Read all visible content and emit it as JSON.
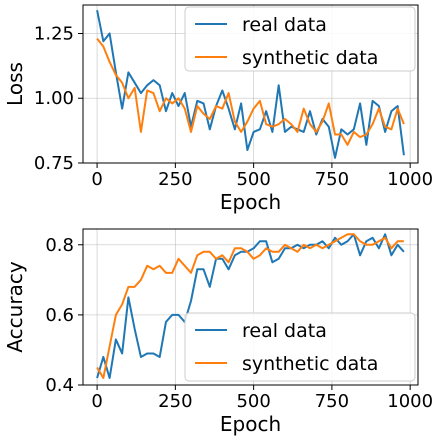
{
  "chart_data": [
    {
      "type": "line",
      "xlabel": "Epoch",
      "ylabel": "Loss",
      "xlim": [
        -45,
        1025
      ],
      "ylim": [
        0.75,
        1.36
      ],
      "xticks": [
        0,
        250,
        500,
        750,
        1000
      ],
      "xtick_labels": [
        "0",
        "250",
        "500",
        "750",
        "1000"
      ],
      "yticks": [
        0.75,
        1.0,
        1.25
      ],
      "ytick_labels": [
        "0.75",
        "1.00",
        "1.25"
      ],
      "grid": true,
      "legend": "top-right",
      "series": [
        {
          "name": "real data",
          "color": "#1f77b4",
          "x": [
            0,
            20,
            40,
            60,
            80,
            100,
            120,
            140,
            160,
            180,
            200,
            220,
            240,
            260,
            280,
            300,
            320,
            340,
            360,
            380,
            400,
            420,
            440,
            460,
            480,
            500,
            520,
            540,
            560,
            580,
            600,
            620,
            640,
            660,
            680,
            700,
            720,
            740,
            760,
            780,
            800,
            820,
            840,
            860,
            880,
            900,
            920,
            940,
            960,
            980
          ],
          "y": [
            1.34,
            1.22,
            1.25,
            1.1,
            0.96,
            1.1,
            1.06,
            1.02,
            1.05,
            1.07,
            1.05,
            0.95,
            1.02,
            0.97,
            1.02,
            0.89,
            0.99,
            0.98,
            0.88,
            0.97,
            1.03,
            0.96,
            0.88,
            0.98,
            0.8,
            0.87,
            0.88,
            0.95,
            0.87,
            1.05,
            0.87,
            0.89,
            0.88,
            0.87,
            0.95,
            0.86,
            0.92,
            0.89,
            0.77,
            0.88,
            0.86,
            0.88,
            0.98,
            0.82,
            0.99,
            0.97,
            0.87,
            0.95,
            0.97,
            0.78
          ]
        },
        {
          "name": "synthetic data",
          "color": "#ff7f0e",
          "x": [
            0,
            20,
            40,
            60,
            80,
            100,
            120,
            140,
            160,
            180,
            200,
            220,
            240,
            260,
            280,
            300,
            320,
            340,
            360,
            380,
            400,
            420,
            440,
            460,
            480,
            500,
            520,
            540,
            560,
            580,
            600,
            620,
            640,
            660,
            680,
            700,
            720,
            740,
            760,
            780,
            800,
            820,
            840,
            860,
            880,
            900,
            920,
            940,
            960,
            980
          ],
          "y": [
            1.23,
            1.2,
            1.14,
            1.09,
            1.06,
            1.0,
            1.04,
            0.87,
            1.03,
            1.02,
            0.95,
            1.0,
            0.98,
            1.0,
            0.96,
            0.87,
            0.97,
            0.94,
            0.92,
            0.97,
            0.96,
            1.02,
            0.91,
            0.87,
            0.91,
            0.96,
            0.99,
            0.9,
            0.89,
            0.9,
            0.92,
            0.9,
            0.87,
            0.96,
            0.9,
            0.87,
            0.91,
            0.98,
            0.86,
            0.86,
            0.82,
            0.87,
            0.85,
            0.86,
            0.9,
            0.96,
            0.89,
            0.88,
            0.96,
            0.9
          ]
        }
      ]
    },
    {
      "type": "line",
      "xlabel": "Epoch",
      "ylabel": "Accuracy",
      "xlim": [
        -45,
        1025
      ],
      "ylim": [
        0.4,
        0.845
      ],
      "xticks": [
        0,
        250,
        500,
        750,
        1000
      ],
      "xtick_labels": [
        "0",
        "250",
        "500",
        "750",
        "1000"
      ],
      "yticks": [
        0.4,
        0.6,
        0.8
      ],
      "ytick_labels": [
        "0.4",
        "0.6",
        "0.8"
      ],
      "grid": true,
      "legend": "bottom-right",
      "series": [
        {
          "name": "real data",
          "color": "#1f77b4",
          "x": [
            0,
            20,
            40,
            60,
            80,
            100,
            120,
            140,
            160,
            180,
            200,
            220,
            240,
            260,
            280,
            300,
            320,
            340,
            360,
            380,
            400,
            420,
            440,
            460,
            480,
            500,
            520,
            540,
            560,
            580,
            600,
            620,
            640,
            660,
            680,
            700,
            720,
            740,
            760,
            780,
            800,
            820,
            840,
            860,
            880,
            900,
            920,
            940,
            960,
            980
          ],
          "y": [
            0.42,
            0.48,
            0.42,
            0.53,
            0.49,
            0.65,
            0.56,
            0.48,
            0.49,
            0.49,
            0.48,
            0.58,
            0.6,
            0.6,
            0.58,
            0.64,
            0.73,
            0.73,
            0.68,
            0.76,
            0.76,
            0.73,
            0.77,
            0.78,
            0.78,
            0.79,
            0.81,
            0.81,
            0.75,
            0.76,
            0.79,
            0.79,
            0.8,
            0.79,
            0.8,
            0.8,
            0.81,
            0.79,
            0.82,
            0.8,
            0.81,
            0.83,
            0.77,
            0.81,
            0.82,
            0.79,
            0.83,
            0.77,
            0.8,
            0.78
          ]
        },
        {
          "name": "synthetic data",
          "color": "#ff7f0e",
          "x": [
            0,
            20,
            40,
            60,
            80,
            100,
            120,
            140,
            160,
            180,
            200,
            220,
            240,
            260,
            280,
            300,
            320,
            340,
            360,
            380,
            400,
            420,
            440,
            460,
            480,
            500,
            520,
            540,
            560,
            580,
            600,
            620,
            640,
            660,
            680,
            700,
            720,
            740,
            760,
            780,
            800,
            820,
            840,
            860,
            880,
            900,
            920,
            940,
            960,
            980
          ],
          "y": [
            0.45,
            0.42,
            0.51,
            0.6,
            0.63,
            0.68,
            0.68,
            0.7,
            0.74,
            0.73,
            0.74,
            0.72,
            0.72,
            0.76,
            0.74,
            0.72,
            0.77,
            0.78,
            0.78,
            0.76,
            0.77,
            0.75,
            0.79,
            0.79,
            0.78,
            0.76,
            0.77,
            0.79,
            0.78,
            0.78,
            0.8,
            0.79,
            0.78,
            0.8,
            0.79,
            0.8,
            0.79,
            0.8,
            0.81,
            0.82,
            0.83,
            0.83,
            0.81,
            0.8,
            0.8,
            0.81,
            0.82,
            0.79,
            0.81,
            0.81
          ]
        }
      ]
    }
  ]
}
